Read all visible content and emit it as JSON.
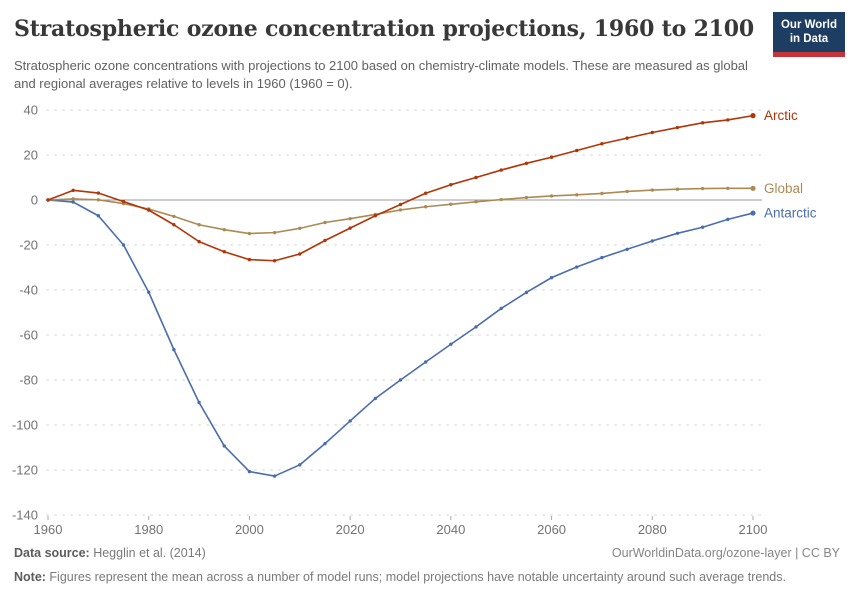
{
  "header": {
    "title": "Stratospheric ozone concentration projections, 1960 to 2100",
    "subtitle": "Stratospheric ozone concentrations with projections to 2100 based on chemistry-climate models. These are measured as global and regional averages relative to levels in 1960 (1960 = 0).",
    "logo": {
      "line1": "Our World",
      "line2": "in Data",
      "bg": "#1d3d63",
      "stripe": "#c5353a"
    }
  },
  "chart_data": {
    "type": "line",
    "title": "Stratospheric ozone concentration projections, 1960 to 2100",
    "xlabel": "",
    "ylabel": "",
    "x": [
      1960,
      1965,
      1970,
      1975,
      1980,
      1985,
      1990,
      1995,
      2000,
      2005,
      2010,
      2015,
      2020,
      2025,
      2030,
      2035,
      2040,
      2045,
      2050,
      2055,
      2060,
      2065,
      2070,
      2075,
      2080,
      2085,
      2090,
      2095,
      2100
    ],
    "series": [
      {
        "name": "Antarctic",
        "color": "#4a6daf",
        "values": [
          0,
          -0.9,
          -7,
          -20,
          -41,
          -66.5,
          -90,
          -109.3,
          -120.7,
          -122.7,
          -117.7,
          -108.3,
          -98.2,
          -88.2,
          -80,
          -72,
          -64.1,
          -56.4,
          -48.2,
          -41.1,
          -34.5,
          -29.8,
          -25.6,
          -21.9,
          -18.2,
          -14.8,
          -12.1,
          -8.6,
          -5.8
        ]
      },
      {
        "name": "Global",
        "color": "#ad8a54",
        "values": [
          0,
          0.5,
          0.1,
          -1.6,
          -4,
          -7.3,
          -11,
          -13.2,
          -14.9,
          -14.5,
          -12.6,
          -10,
          -8.3,
          -6.4,
          -4.4,
          -3,
          -1.9,
          -0.8,
          0.2,
          1.1,
          1.8,
          2.3,
          2.9,
          3.8,
          4.4,
          4.8,
          5.1,
          5.2,
          5.2
        ]
      },
      {
        "name": "Arctic",
        "color": "#b13507",
        "values": [
          0,
          4.3,
          3.1,
          -0.7,
          -4.5,
          -11,
          -18.5,
          -23,
          -26.5,
          -27,
          -24,
          -18,
          -12.5,
          -7,
          -2,
          3,
          6.8,
          10,
          13.3,
          16.3,
          19,
          22,
          25,
          27.5,
          30,
          32.2,
          34.3,
          35.6,
          37.5
        ]
      }
    ],
    "xlim": [
      1960,
      2100
    ],
    "ylim": [
      -140,
      40
    ],
    "yticks": [
      40,
      20,
      0,
      -20,
      -40,
      -60,
      -80,
      -100,
      -120,
      -140
    ],
    "xticks": [
      1960,
      1980,
      2000,
      2020,
      2040,
      2060,
      2080,
      2100
    ],
    "grid": "dashed horizontal gridlines, solid line at y=0",
    "legend_position": "labels at right end of each line",
    "zero_line": true
  },
  "footer": {
    "source_label": "Data source:",
    "source_value": " Hegglin et al. (2014)",
    "rights": "OurWorldinData.org/ozone-layer | CC BY",
    "note_label": "Note:",
    "note_value": " Figures represent the mean across a number of model runs; model projections have notable uncertainty around such average trends."
  }
}
